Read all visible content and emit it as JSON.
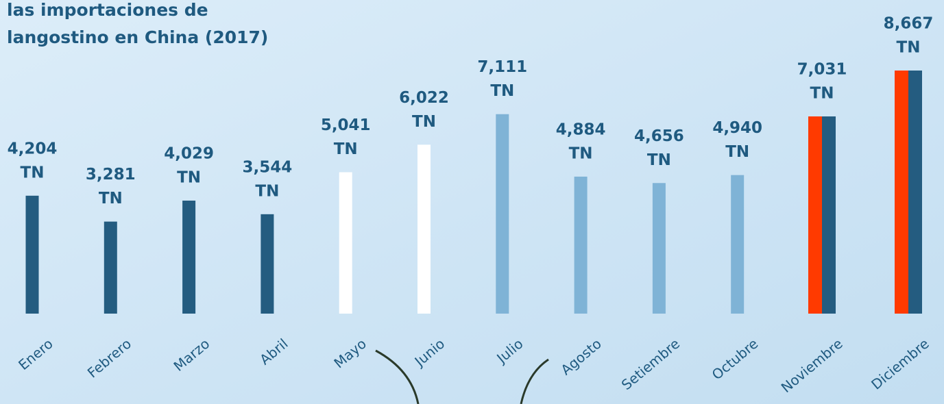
{
  "chart_data": {
    "type": "bar",
    "title_lines": [
      "las importaciones de",
      "langostino en China (2017)"
    ],
    "categories": [
      "Enero",
      "Febrero",
      "Marzo",
      "Abril",
      "Mayo",
      "Junio",
      "Julio",
      "Agosto",
      "Setiembre",
      "Octubre",
      "Noviembre",
      "Diciembre"
    ],
    "values": [
      4204,
      3281,
      4029,
      3544,
      5041,
      6022,
      7111,
      4884,
      4656,
      4940,
      7031,
      8667
    ],
    "value_labels": [
      "4,204",
      "3,281",
      "4,029",
      "3,544",
      "5,041",
      "6,022",
      "7,111",
      "4,884",
      "4,656",
      "4,940",
      "7,031",
      "8,667"
    ],
    "value_unit": "TN",
    "colors": [
      "#245c80",
      "#245c80",
      "#245c80",
      "#245c80",
      "#ffffff",
      "#ffffff",
      "#7fb3d6",
      "#7fb3d6",
      "#7fb3d6",
      "#7fb3d6",
      [
        "#ff3a00",
        "#245c80"
      ],
      [
        "#ff3a00",
        "#245c80"
      ]
    ]
  }
}
